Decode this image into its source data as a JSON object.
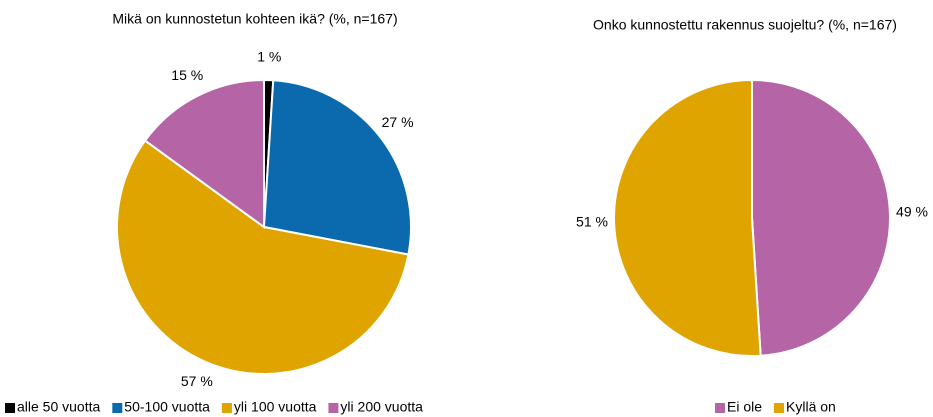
{
  "chart_data": [
    {
      "type": "pie",
      "title": "Mikä on kunnostetun  kohteen ikä? (%, n=167)",
      "categories": [
        "alle 50 vuotta",
        "50-100 vuotta",
        "yli 100 vuotta",
        "yli 200 vuotta"
      ],
      "values": [
        1,
        27,
        57,
        15
      ],
      "value_labels": [
        "1 %",
        "27 %",
        "57 %",
        "15 %"
      ],
      "colors": [
        "#000000",
        "#0a6aad",
        "#e0a400",
        "#b565a5"
      ]
    },
    {
      "type": "pie",
      "title": "Onko kunnostettu  rakennus suojeltu? (%, n=167)",
      "categories": [
        "Ei ole",
        "Kyllä on"
      ],
      "values": [
        49,
        51
      ],
      "value_labels": [
        "49 %",
        "51 %"
      ],
      "colors": [
        "#b565a5",
        "#e0a400"
      ]
    }
  ]
}
